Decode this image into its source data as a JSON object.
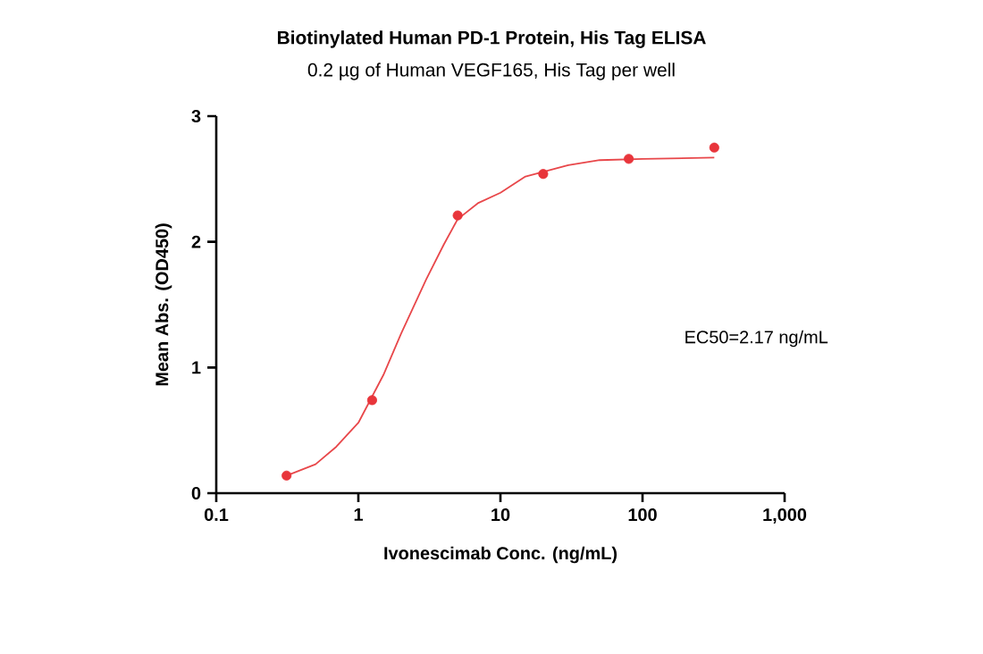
{
  "chart_data": {
    "type": "scatter",
    "title": "Biotinylated Human PD-1 Protein, His Tag ELISA",
    "subtitle": "0.2 µg of Human VEGF165, His Tag per well",
    "xlabel": "Ivonescimab Conc. (ng/mL)",
    "ylabel": "Mean Abs. (OD450)",
    "annotations": [
      "EC50=2.17 ng/mL"
    ],
    "log": "x",
    "xlim": [
      0.1,
      1000
    ],
    "ylim": [
      0,
      3
    ],
    "xticks": [
      0.1,
      1,
      10,
      100,
      {
        "value": 1000,
        "label": "1,000"
      }
    ],
    "yticks": [
      0,
      1,
      2,
      3
    ],
    "grid": false,
    "series": [
      {
        "color": "#e8353b",
        "marker": "circle",
        "x": [
          0.3125,
          1.25,
          5,
          20,
          80,
          320
        ],
        "values": [
          0.14,
          0.74,
          2.21,
          2.54,
          2.66,
          2.75
        ]
      },
      {
        "type": "line",
        "color": "#e8474a",
        "marker": "none",
        "line_style": "solid",
        "x": [
          0.3125,
          0.5,
          0.7,
          1,
          1.5,
          2,
          3,
          4,
          5,
          7,
          10,
          15,
          30,
          50,
          100,
          320
        ],
        "values": [
          0.14,
          0.23,
          0.37,
          0.56,
          0.94,
          1.27,
          1.7,
          1.98,
          2.18,
          2.31,
          2.39,
          2.52,
          2.61,
          2.65,
          2.66,
          2.67
        ]
      }
    ]
  }
}
